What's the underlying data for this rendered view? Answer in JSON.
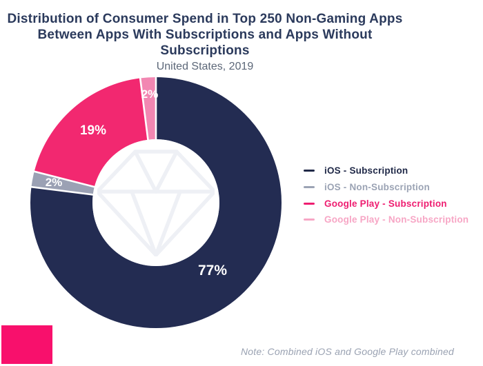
{
  "header": {
    "title_line1": "Distribution of Consumer Spend in Top 250 Non-Gaming Apps",
    "title_line2": "Between Apps With Subscriptions and Apps Without Subscriptions",
    "subtitle": "United States, 2019"
  },
  "chart_data": {
    "type": "pie",
    "variant": "donut",
    "title": "Distribution of Consumer Spend in Top 250 Non-Gaming Apps Between Apps With Subscriptions and Apps Without Subscriptions",
    "subtitle": "United States, 2019",
    "start_angle_deg": 0,
    "direction": "clockwise",
    "hole_ratio": 0.51,
    "separator_color": "#FFFFFF",
    "value_label_color": "#FFFFFF",
    "legend_position": "right",
    "segments": [
      {
        "label": "iOS - Subscription",
        "value": 77,
        "display": "77%",
        "color": "#232C52",
        "legend_color": "#1F2847"
      },
      {
        "label": "iOS - Non-Subscription",
        "value": 2,
        "display": "2%",
        "color": "#9BA1B4",
        "legend_color": "#9BA3B4"
      },
      {
        "label": "Google Play - Subscription",
        "value": 19,
        "display": "19%",
        "color": "#F22870",
        "legend_color": "#EE1D70"
      },
      {
        "label": "Google Play - Non-Subscription",
        "value": 2,
        "display": "2%",
        "color": "#F287B2",
        "legend_color": "#F7A6C5"
      }
    ],
    "watermark_icon": "gem"
  },
  "footer": {
    "note": "Note: Combined iOS and Google Play combined"
  },
  "colors": {
    "background": "#FFFFFF",
    "title_text": "#2B3A5C",
    "subtitle_text": "#5C6778",
    "note_text": "#9AA2B2",
    "accent_square": "#F8106C",
    "watermark": "#EEF0F5"
  }
}
